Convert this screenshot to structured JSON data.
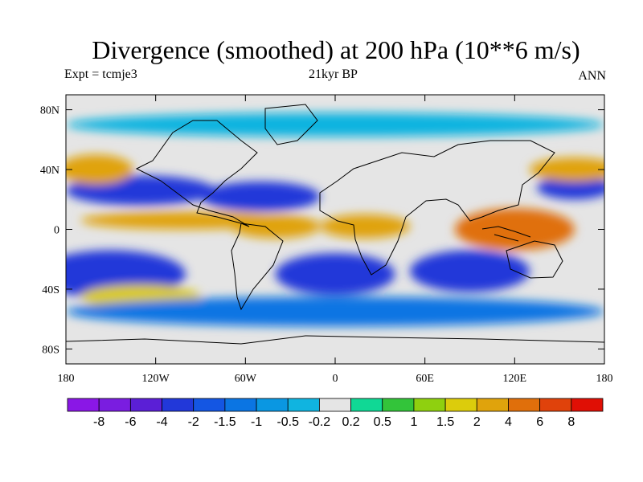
{
  "title": "Divergence (smoothed) at 200 hPa (10**6 m/s)",
  "subtitle_left": "Expt = tcmje3",
  "subtitle_center": "21kyr BP",
  "subtitle_right": "ANN",
  "lat_ticks": [
    {
      "label": "80N",
      "lat": 80
    },
    {
      "label": "40N",
      "lat": 40
    },
    {
      "label": "0",
      "lat": 0
    },
    {
      "label": "40S",
      "lat": -40
    },
    {
      "label": "80S",
      "lat": -80
    }
  ],
  "lon_ticks": [
    {
      "label": "180",
      "lon": -180
    },
    {
      "label": "120W",
      "lon": -120
    },
    {
      "label": "60W",
      "lon": -60
    },
    {
      "label": "0",
      "lon": 0
    },
    {
      "label": "60E",
      "lon": 60
    },
    {
      "label": "120E",
      "lon": 120
    },
    {
      "label": "180",
      "lon": 180
    }
  ],
  "colorbar": {
    "colors": [
      "#8a17e6",
      "#7a1de0",
      "#5b1fd6",
      "#2238d9",
      "#1456e3",
      "#0b75e3",
      "#0a97e2",
      "#10b4e0",
      "#e5e5e5",
      "#10d895",
      "#33c43a",
      "#8fd00f",
      "#dccc0c",
      "#e0a30c",
      "#e06f0b",
      "#e0420b",
      "#e00f05"
    ],
    "labels": [
      "-8",
      "-6",
      "-4",
      "-2",
      "-1.5",
      "-1",
      "-0.5",
      "-0.2",
      "0.2",
      "0.5",
      "1",
      "1.5",
      "2",
      "4",
      "6",
      "8"
    ]
  },
  "map_data": {
    "background": "#e5e5e5",
    "fields": [
      {
        "lon": -150,
        "lat": -30,
        "rx": 50,
        "ry": 16,
        "color": "#2238d9"
      },
      {
        "lon": 0,
        "lat": -30,
        "rx": 40,
        "ry": 14,
        "color": "#2238d9"
      },
      {
        "lon": 90,
        "lat": -28,
        "rx": 40,
        "ry": 14,
        "color": "#2238d9"
      },
      {
        "lon": -130,
        "lat": 26,
        "rx": 50,
        "ry": 10,
        "color": "#2238d9"
      },
      {
        "lon": -50,
        "lat": 22,
        "rx": 40,
        "ry": 10,
        "color": "#2238d9"
      },
      {
        "lon": 160,
        "lat": 28,
        "rx": 25,
        "ry": 8,
        "color": "#2238d9"
      },
      {
        "lon": -100,
        "lat": 6,
        "rx": 70,
        "ry": 6,
        "color": "#e0a30c"
      },
      {
        "lon": -40,
        "lat": 2,
        "rx": 30,
        "ry": 8,
        "color": "#e0a30c"
      },
      {
        "lon": 20,
        "lat": 2,
        "rx": 30,
        "ry": 8,
        "color": "#e0a30c"
      },
      {
        "lon": 120,
        "lat": 0,
        "rx": 40,
        "ry": 14,
        "color": "#e06f0b"
      },
      {
        "lon": -160,
        "lat": 40,
        "rx": 25,
        "ry": 10,
        "color": "#e0a30c"
      },
      {
        "lon": 160,
        "lat": 40,
        "rx": 30,
        "ry": 8,
        "color": "#e0a30c"
      },
      {
        "lon": -130,
        "lat": -45,
        "rx": 40,
        "ry": 8,
        "color": "#dccc0c"
      },
      {
        "lon": 0,
        "lat": -55,
        "rx": 180,
        "ry": 10,
        "color": "#0b75e3"
      },
      {
        "lon": 0,
        "lat": 70,
        "rx": 180,
        "ry": 8,
        "color": "#10b4e0"
      }
    ]
  }
}
